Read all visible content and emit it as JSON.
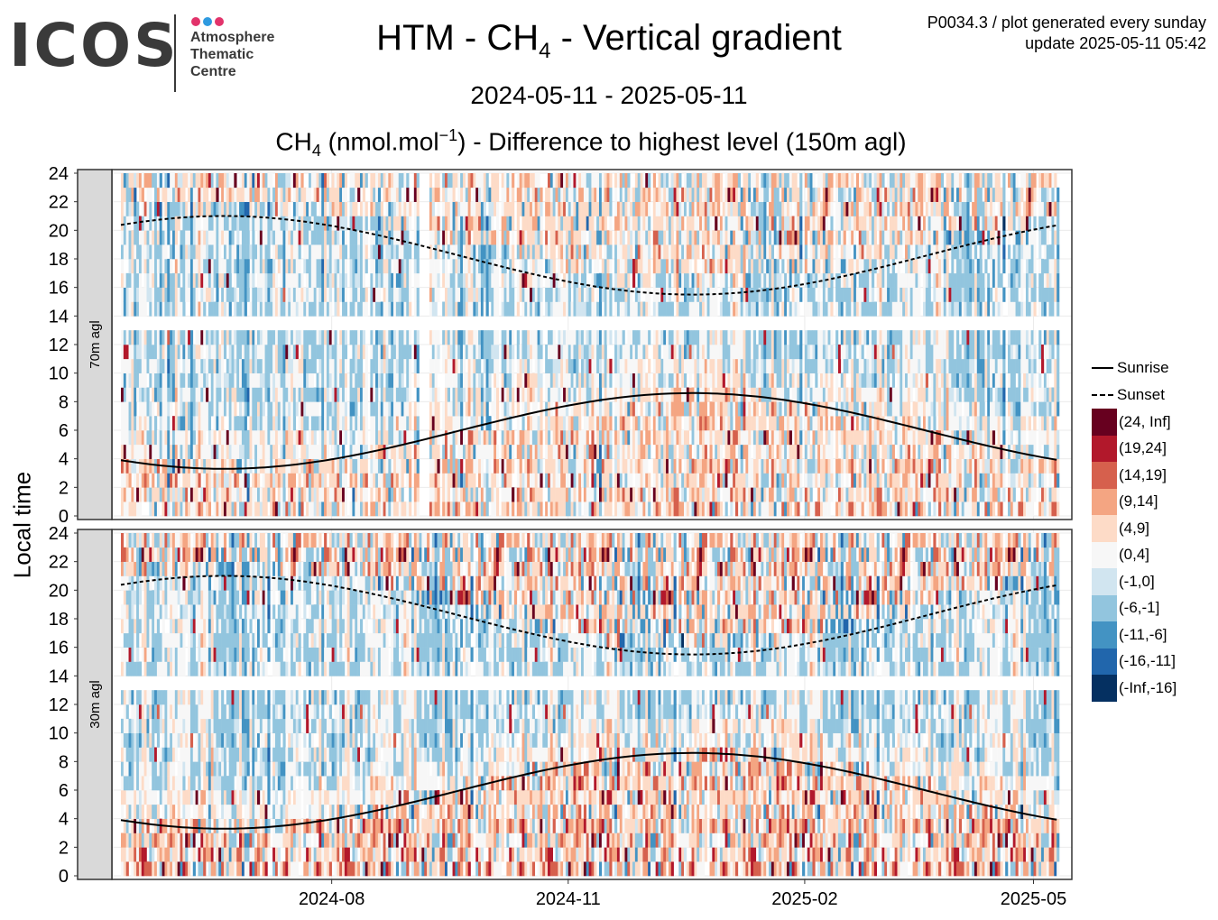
{
  "logo": {
    "word": "ICOS",
    "lines": [
      "Atmosphere",
      "Thematic",
      "Centre"
    ],
    "dot_colors": [
      "#e2336b",
      "#2e9ae0",
      "#e2336b"
    ]
  },
  "header": {
    "title_pre": "HTM - CH",
    "title_sub": "4",
    "title_post": " - Vertical gradient",
    "date_range": "2024-05-11 - 2025-05-11",
    "subtitle_pre": "CH",
    "subtitle_sub": "4",
    "subtitle_mid": " (nmol.mol",
    "subtitle_sup": "−1",
    "subtitle_post": ") - Difference to highest level (150m agl)",
    "info_line1": "P0034.3 / plot generated every sunday",
    "info_line2": "update  2025-05-11 05:42"
  },
  "chart_data": {
    "type": "heatmap",
    "ylabel": "Local time",
    "x_range": [
      "2024-05-11",
      "2025-05-11"
    ],
    "x_ticks": [
      "2024-08",
      "2024-11",
      "2025-02",
      "2025-05"
    ],
    "x_tick_dates": [
      "2024-08-01",
      "2024-11-01",
      "2025-02-01",
      "2025-05-01"
    ],
    "y_range": [
      0,
      24
    ],
    "y_ticks": [
      0,
      2,
      4,
      6,
      8,
      10,
      12,
      14,
      16,
      18,
      20,
      22,
      24
    ],
    "gap_hours": [
      13,
      14
    ],
    "panels": [
      {
        "label": "70m agl",
        "intensity": 0.75
      },
      {
        "label": "30m agl",
        "intensity": 1.0
      }
    ],
    "legend_lines": [
      {
        "name": "Sunrise",
        "style": "solid"
      },
      {
        "name": "Sunset",
        "style": "dashed"
      }
    ],
    "color_bins": [
      {
        "label": "(24, Inf]",
        "color": "#67001f"
      },
      {
        "label": "(19,24]",
        "color": "#b2182b"
      },
      {
        "label": "(14,19]",
        "color": "#d6604d"
      },
      {
        "label": "(9,14]",
        "color": "#f4a582"
      },
      {
        "label": "(4,9]",
        "color": "#fddbc7"
      },
      {
        "label": "(0,4]",
        "color": "#f7f7f7"
      },
      {
        "label": "(-1,0]",
        "color": "#d1e5f0"
      },
      {
        "label": "(-6,-1]",
        "color": "#92c5de"
      },
      {
        "label": "(-11,-6]",
        "color": "#4393c3"
      },
      {
        "label": "(-16,-11]",
        "color": "#2166ac"
      },
      {
        "label": "(-Inf,-16]",
        "color": "#053061"
      }
    ],
    "sunrise": {
      "min_date": "2024-06-20",
      "min_hour": 3.3,
      "max_hour": 8.6
    },
    "sunset": {
      "max_date": "2024-06-20",
      "max_hour": 21.0,
      "min_hour": 15.5
    }
  }
}
